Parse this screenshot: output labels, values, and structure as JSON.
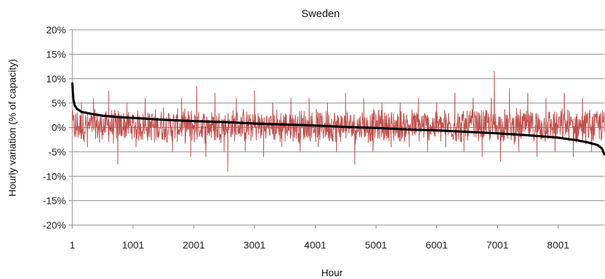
{
  "chart_data": {
    "type": "line",
    "title": "Sweden",
    "xlabel": "Hour",
    "ylabel": "Hourly variation (% of capacity)",
    "xlim": [
      1,
      8760
    ],
    "ylim": [
      -20,
      20
    ],
    "x_ticks": [
      "1",
      "1001",
      "2001",
      "3001",
      "4001",
      "5001",
      "6001",
      "7001",
      "8001"
    ],
    "y_ticks": [
      "20%",
      "15%",
      "10%",
      "5%",
      "0%",
      "-5%",
      "-10%",
      "-15%",
      "-20%"
    ],
    "grid": "horizontal",
    "series": [
      {
        "color": "#c0504d",
        "style": "hourly fluctuating",
        "x": [
          1,
          60,
          150,
          250,
          350,
          450,
          600,
          750,
          900,
          1050,
          1200,
          1350,
          1500,
          1650,
          1800,
          1950,
          2050,
          2200,
          2350,
          2500,
          2560,
          2700,
          2850,
          3000,
          3150,
          3300,
          3450,
          3600,
          3750,
          3900,
          4050,
          4200,
          4350,
          4500,
          4650,
          4800,
          4950,
          5100,
          5250,
          5400,
          5550,
          5700,
          5850,
          6000,
          6150,
          6300,
          6450,
          6600,
          6750,
          6900,
          6950,
          7050,
          7200,
          7350,
          7500,
          7650,
          7800,
          7950,
          8100,
          8250,
          8400,
          8550,
          8700,
          8760
        ],
        "y": [
          3,
          -2,
          5,
          -4,
          6,
          -3,
          7.5,
          -7.5,
          5,
          -4,
          6,
          -3,
          4,
          -5,
          6,
          -6,
          8.5,
          -6,
          7,
          -5,
          -9,
          6,
          -5,
          7.5,
          -6,
          5,
          -4,
          6,
          -5,
          6,
          -4,
          5,
          -5,
          7,
          -7.5,
          6,
          -5,
          5,
          -4,
          5,
          -4,
          6,
          -5,
          5,
          -4,
          7,
          -5,
          6,
          -6,
          6,
          11.5,
          -7,
          8,
          -5,
          7,
          -6,
          6,
          -5,
          7,
          -6,
          6,
          -5,
          3,
          -1
        ]
      },
      {
        "color": "#000000",
        "style": "sorted duration curve",
        "x": [
          1,
          15,
          40,
          80,
          150,
          300,
          500,
          800,
          1200,
          1600,
          2000,
          2500,
          3000,
          3500,
          4000,
          4500,
          5000,
          5500,
          6000,
          6500,
          7000,
          7500,
          8000,
          8300,
          8500,
          8650,
          8720,
          8760
        ],
        "y": [
          9,
          6,
          4.5,
          3.8,
          3.2,
          2.8,
          2.4,
          2.1,
          1.8,
          1.5,
          1.3,
          1.1,
          0.8,
          0.6,
          0.4,
          0.1,
          -0.1,
          -0.4,
          -0.6,
          -0.9,
          -1.2,
          -1.6,
          -2.1,
          -2.6,
          -3.1,
          -3.6,
          -4.3,
          -5.5
        ]
      }
    ]
  }
}
